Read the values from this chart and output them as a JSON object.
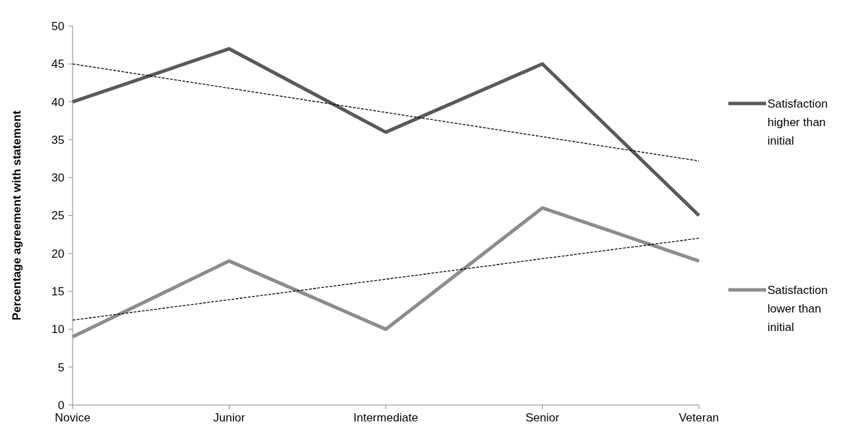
{
  "chart_data": {
    "type": "line",
    "ylabel": "Percentage agreement with statement",
    "categories": [
      "Novice",
      "Junior",
      "Intermediate",
      "Senior",
      "Veteran"
    ],
    "ylim": [
      0,
      50
    ],
    "yticks": [
      0,
      5,
      10,
      15,
      20,
      25,
      30,
      35,
      40,
      45,
      50
    ],
    "grid": false,
    "legend": "right",
    "marker": "none",
    "series": [
      {
        "name": "Satisfaction higher than initial",
        "color": "#595959",
        "values": [
          40,
          47,
          36,
          45,
          25
        ]
      },
      {
        "name": "Satisfaction lower than initial",
        "color": "#8c8c8c",
        "values": [
          9,
          19,
          10,
          26,
          19
        ]
      },
      {
        "type": "line",
        "color": "#000000",
        "line_style": "dashed",
        "x": [
          "Novice",
          "Veteran"
        ],
        "values": [
          45,
          32.2
        ]
      },
      {
        "type": "line",
        "color": "#000000",
        "line_style": "dashed",
        "x": [
          "Novice",
          "Veteran"
        ],
        "values": [
          11.2,
          22
        ]
      }
    ]
  }
}
